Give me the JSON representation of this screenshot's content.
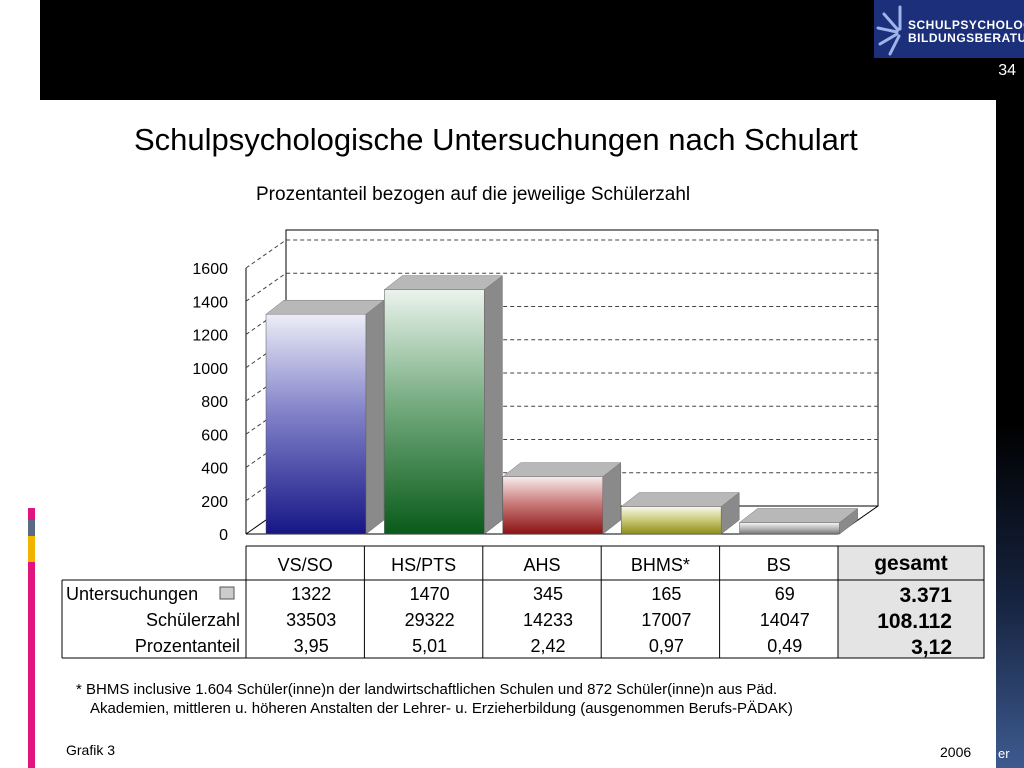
{
  "slide": {
    "page_number": "34",
    "logo_line1": "SCHULPSYCHOLOGIE",
    "logo_line2": "BILDUNGSBERATUNG",
    "corner_text": "er"
  },
  "chart_data": {
    "type": "bar",
    "title": "Schulpsychologische Untersuchungen nach Schulart",
    "subtitle": "Prozentanteil bezogen auf die jeweilige Schülerzahl",
    "categories": [
      "VS/SO",
      "HS/PTS",
      "AHS",
      "BHMS*",
      "BS"
    ],
    "values": [
      1322,
      1470,
      345,
      165,
      69
    ],
    "ylim": [
      0,
      1600
    ],
    "yticks": [
      "0",
      "200",
      "400",
      "600",
      "800",
      "1000",
      "1200",
      "1400",
      "1600"
    ],
    "grid": true,
    "bar_colors": [
      "#1a1a9c",
      "#0b6b1e",
      "#a31515",
      "#a6a61a",
      "#8c8c8c"
    ],
    "table": {
      "total_header": "gesamt",
      "rows": [
        {
          "label": "Untersuchungen",
          "values": [
            "1322",
            "1470",
            "345",
            "165",
            "69"
          ],
          "total": "3.371"
        },
        {
          "label": "Schülerzahl",
          "values": [
            "33503",
            "29322",
            "14233",
            "17007",
            "14047"
          ],
          "total": "108.112"
        },
        {
          "label": "Prozentanteil",
          "values": [
            "3,95",
            "5,01",
            "2,42",
            "0,97",
            "0,49"
          ],
          "total": "3,12"
        }
      ]
    }
  },
  "footnote": {
    "line1": "* BHMS inclusive 1.604 Schüler(inne)n der landwirtschaftlichen Schulen und  872 Schüler(inne)n aus Päd.",
    "line2": "Akademien, mittleren u. höheren Anstalten der Lehrer- u. Erzieherbildung (ausgenommen Berufs-PÄDAK)"
  },
  "grafik_label": "Grafik 3",
  "year": "2006"
}
